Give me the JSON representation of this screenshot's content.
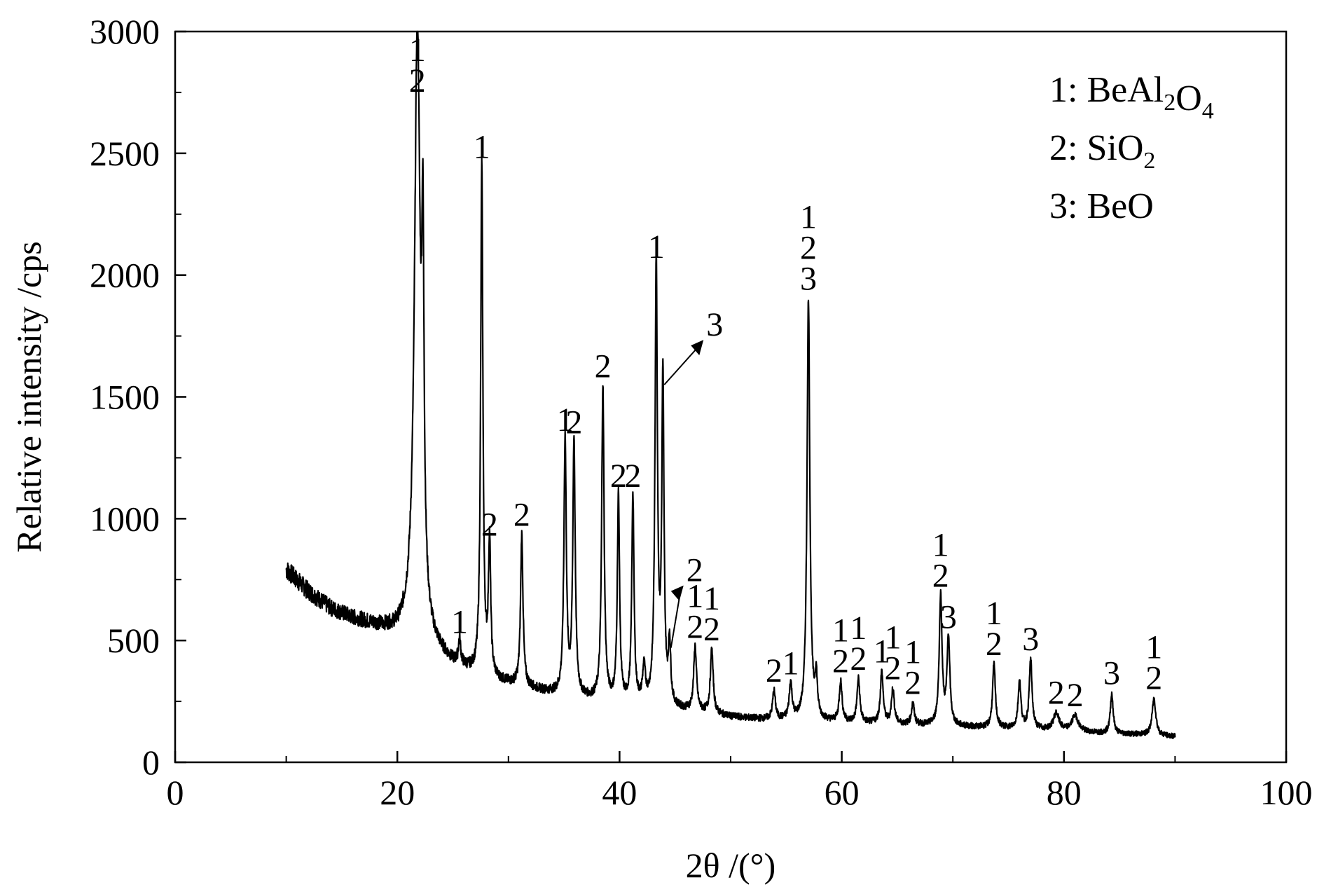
{
  "chart_data": {
    "type": "line",
    "xlabel": "2θ /(°)",
    "ylabel": "Relative intensity /cps",
    "xlim": [
      0,
      100
    ],
    "ylim": [
      0,
      3000
    ],
    "x_ticks": [
      "0",
      "20",
      "40",
      "60",
      "80",
      "100"
    ],
    "y_ticks": [
      "0",
      "500",
      "1000",
      "1500",
      "2000",
      "2500",
      "3000"
    ],
    "grid": false,
    "legend_position": "top-right",
    "legend": [
      {
        "index": "1:",
        "formula": [
          {
            "t": " BeAl"
          },
          {
            "t": "2",
            "sub": true
          },
          {
            "t": "O"
          },
          {
            "t": "4",
            "sub": true
          }
        ]
      },
      {
        "index": "2:",
        "formula": [
          {
            "t": " SiO"
          },
          {
            "t": "2",
            "sub": true
          }
        ]
      },
      {
        "index": "3:",
        "formula": [
          {
            "t": " BeO"
          }
        ]
      }
    ],
    "background": {
      "x": [
        10,
        12,
        14,
        16,
        18,
        20,
        21.5,
        23,
        25,
        27,
        29,
        31,
        33,
        35,
        38,
        41,
        44,
        47,
        50,
        53,
        56,
        59,
        62,
        65,
        68,
        71,
        74,
        77,
        80,
        83,
        86,
        88,
        90
      ],
      "y": [
        790,
        700,
        630,
        590,
        560,
        530,
        550,
        470,
        400,
        360,
        330,
        310,
        290,
        270,
        250,
        235,
        220,
        205,
        185,
        175,
        170,
        165,
        160,
        155,
        150,
        145,
        140,
        135,
        128,
        120,
        115,
        110,
        105
      ]
    },
    "peaks": [
      {
        "x": 21.8,
        "y": 3000,
        "w": 0.3,
        "labels": [
          "1",
          "2"
        ]
      },
      {
        "x": 22.3,
        "y": 1800,
        "w": 0.12,
        "labels": []
      },
      {
        "x": 25.6,
        "y": 490,
        "w": 0.12,
        "labels": [
          "1"
        ]
      },
      {
        "x": 27.6,
        "y": 2440,
        "w": 0.12,
        "labels": [
          "1"
        ]
      },
      {
        "x": 28.3,
        "y": 890,
        "w": 0.12,
        "labels": [
          "2"
        ]
      },
      {
        "x": 31.2,
        "y": 930,
        "w": 0.13,
        "labels": [
          "2"
        ]
      },
      {
        "x": 35.1,
        "y": 1320,
        "w": 0.13,
        "labels": [
          "1"
        ]
      },
      {
        "x": 35.9,
        "y": 1310,
        "w": 0.13,
        "labels": [
          "2"
        ]
      },
      {
        "x": 38.5,
        "y": 1540,
        "w": 0.13,
        "labels": [
          "2"
        ]
      },
      {
        "x": 39.9,
        "y": 1090,
        "w": 0.12,
        "labels": [
          "2"
        ]
      },
      {
        "x": 41.2,
        "y": 1090,
        "w": 0.12,
        "labels": [
          "2"
        ]
      },
      {
        "x": 42.2,
        "y": 370,
        "w": 0.15,
        "labels": []
      },
      {
        "x": 43.3,
        "y": 2030,
        "w": 0.13,
        "labels": [
          "1"
        ]
      },
      {
        "x": 43.9,
        "y": 1550,
        "w": 0.12,
        "labels": [
          "3"
        ]
      },
      {
        "x": 44.5,
        "y": 470,
        "w": 0.12,
        "labels": [
          "2"
        ]
      },
      {
        "x": 46.8,
        "y": 470,
        "w": 0.15,
        "labels": [
          "1",
          "2"
        ]
      },
      {
        "x": 48.3,
        "y": 460,
        "w": 0.15,
        "labels": [
          "1",
          "2"
        ]
      },
      {
        "x": 53.9,
        "y": 290,
        "w": 0.15,
        "labels": [
          "2"
        ]
      },
      {
        "x": 55.4,
        "y": 320,
        "w": 0.15,
        "labels": [
          "1"
        ]
      },
      {
        "x": 57.0,
        "y": 1900,
        "w": 0.15,
        "labels": [
          "1",
          "2",
          "3"
        ]
      },
      {
        "x": 57.7,
        "y": 330,
        "w": 0.12,
        "labels": []
      },
      {
        "x": 59.9,
        "y": 330,
        "w": 0.15,
        "labels": [
          "1",
          "2"
        ]
      },
      {
        "x": 61.5,
        "y": 340,
        "w": 0.15,
        "labels": [
          "1",
          "2"
        ]
      },
      {
        "x": 63.6,
        "y": 370,
        "w": 0.15,
        "labels": [
          "1"
        ]
      },
      {
        "x": 64.6,
        "y": 300,
        "w": 0.15,
        "labels": [
          "1",
          "2"
        ]
      },
      {
        "x": 66.4,
        "y": 240,
        "w": 0.15,
        "labels": [
          "1",
          "2"
        ]
      },
      {
        "x": 68.9,
        "y": 680,
        "w": 0.15,
        "labels": [
          "1",
          "2"
        ]
      },
      {
        "x": 69.6,
        "y": 510,
        "w": 0.15,
        "labels": [
          "3"
        ]
      },
      {
        "x": 73.7,
        "y": 400,
        "w": 0.15,
        "labels": [
          "1",
          "2"
        ]
      },
      {
        "x": 76.0,
        "y": 330,
        "w": 0.15,
        "labels": []
      },
      {
        "x": 77.0,
        "y": 420,
        "w": 0.15,
        "labels": [
          "3"
        ]
      },
      {
        "x": 79.3,
        "y": 200,
        "w": 0.3,
        "labels": [
          "2"
        ]
      },
      {
        "x": 81.0,
        "y": 190,
        "w": 0.35,
        "labels": [
          "2"
        ]
      },
      {
        "x": 84.3,
        "y": 280,
        "w": 0.15,
        "labels": [
          "3"
        ]
      },
      {
        "x": 88.1,
        "y": 260,
        "w": 0.2,
        "labels": [
          "1",
          "2"
        ]
      }
    ]
  }
}
